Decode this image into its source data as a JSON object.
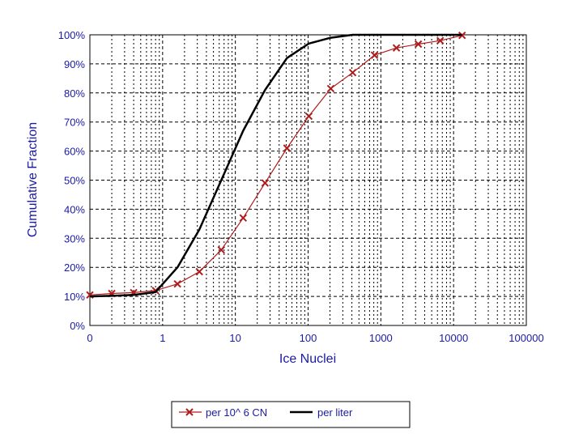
{
  "chart_data": {
    "type": "line",
    "x_scale": "log",
    "xlabel": "Ice Nuclei",
    "ylabel": "Cumulative Fraction",
    "x_tick_labels": [
      "0",
      "1",
      "10",
      "100",
      "1000",
      "10000",
      "100000"
    ],
    "y_tick_labels": [
      "0%",
      "10%",
      "20%",
      "30%",
      "40%",
      "50%",
      "60%",
      "70%",
      "80%",
      "90%",
      "100%"
    ],
    "xlim": [
      0.1,
      100000
    ],
    "ylim": [
      0,
      100
    ],
    "grid": true,
    "legend_position": "bottom",
    "series": [
      {
        "name": "per 10^ 6 CN",
        "color": "#b01c1c",
        "marker": "x",
        "x": [
          0.1,
          0.2,
          0.4,
          0.8,
          1.6,
          3.2,
          6.4,
          12.8,
          25.6,
          51.2,
          102.4,
          204.8,
          409.6,
          819.2,
          1638,
          3277,
          6554,
          13107
        ],
        "y": [
          10.5,
          11,
          11.3,
          12,
          14.3,
          18.5,
          26,
          37,
          49,
          61,
          72,
          81.5,
          87,
          93,
          95.5,
          96.8,
          98,
          99.8
        ]
      },
      {
        "name": "per liter",
        "color": "#000000",
        "marker": "none",
        "x": [
          0.1,
          0.2,
          0.4,
          0.8,
          1.6,
          3.2,
          6.4,
          12.8,
          25.6,
          51.2,
          102.4,
          204.8,
          409.6,
          819.2,
          1638,
          3277,
          6554,
          13107
        ],
        "y": [
          10,
          10.2,
          10.5,
          11.5,
          20,
          33,
          50,
          67,
          81,
          92,
          97,
          99,
          100,
          100,
          100,
          100,
          100,
          100
        ]
      }
    ]
  }
}
